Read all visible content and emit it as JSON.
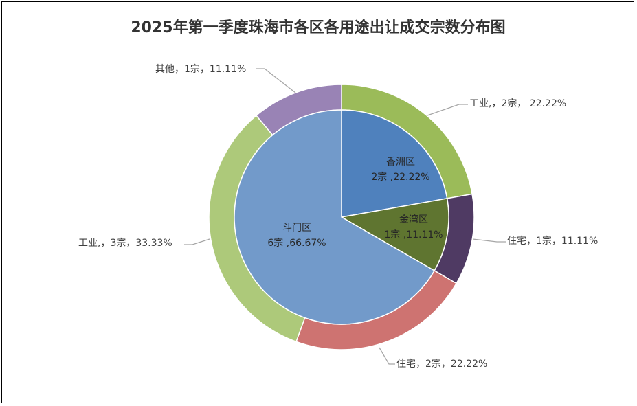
{
  "chart_data": {
    "type": "pie",
    "title": "2025年第一季度珠海市各区各用途出让成交宗数分布图",
    "inner": [
      {
        "name": "香洲区",
        "value": 2,
        "label_line1": "香洲区",
        "label_line2": "2宗 ,22.22%",
        "color": "#4f81bd"
      },
      {
        "name": "金湾区",
        "value": 1,
        "label_line1": "金湾区",
        "label_line2": "1宗 ,11.11%",
        "color": "#5f7530"
      },
      {
        "name": "斗门区",
        "value": 6,
        "label_line1": "斗门区",
        "label_line2": "6宗 ,66.67%",
        "color": "#729aca"
      }
    ],
    "outer": [
      {
        "name": "工业",
        "value": 2,
        "label": "工业,，2宗， 22.22%",
        "color": "#9bbb59"
      },
      {
        "name": "住宅",
        "value": 1,
        "label": "住宅，1宗，11.11%",
        "color": "#4f3a63"
      },
      {
        "name": "住宅",
        "value": 2,
        "label": "住宅，2宗，22.22%",
        "color": "#ce7371"
      },
      {
        "name": "工业",
        "value": 3,
        "label": "工业,，3宗，33.33%",
        "color": "#adc97a"
      },
      {
        "name": "其他",
        "value": 1,
        "label": "其他，1宗，11.11%",
        "color": "#9983b5"
      }
    ]
  }
}
